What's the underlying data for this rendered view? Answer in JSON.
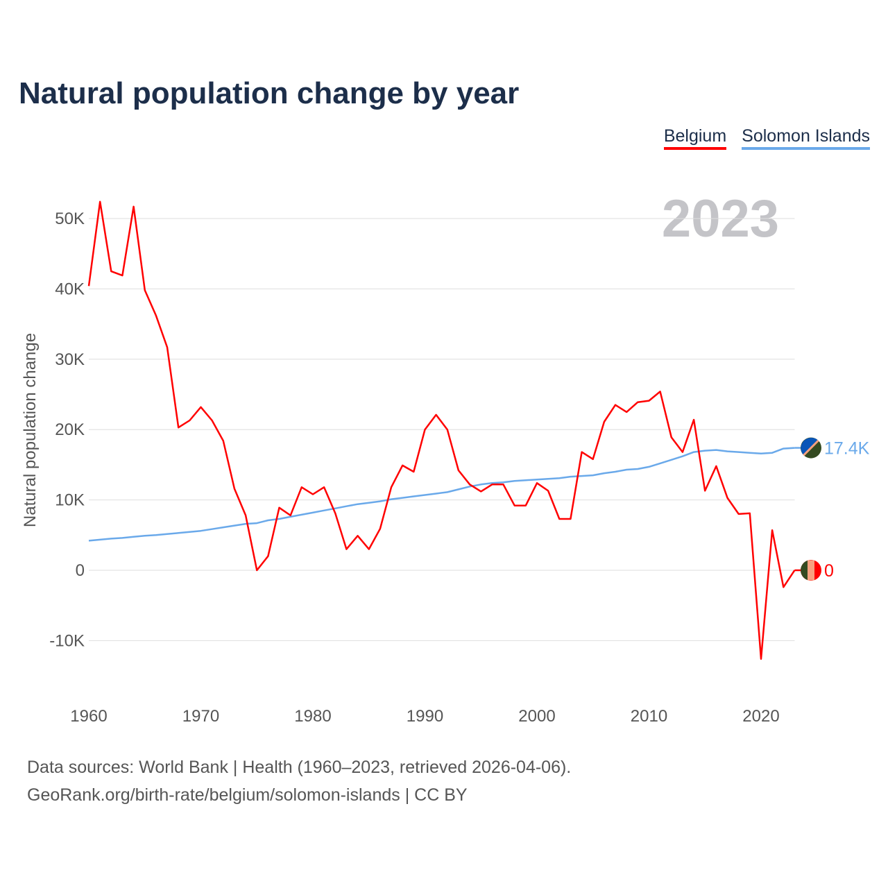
{
  "chart_data": {
    "type": "line",
    "title": "Natural population change by year",
    "xlabel": "",
    "ylabel": "Natural population change",
    "xlim": [
      1960,
      2023
    ],
    "ylim": [
      -15000,
      55000
    ],
    "grid": true,
    "legend_position": "top-right",
    "x_ticks": [
      1960,
      1970,
      1980,
      1990,
      2000,
      2010,
      2020
    ],
    "x_tick_labels": [
      "1960",
      "1970",
      "1980",
      "1990",
      "2000",
      "2010",
      "2020"
    ],
    "y_ticks": [
      -10000,
      0,
      10000,
      20000,
      30000,
      40000,
      50000
    ],
    "y_tick_labels": [
      "-10K",
      "0",
      "10K",
      "20K",
      "30K",
      "40K",
      "50K"
    ],
    "year_annotation": "2023",
    "x": [
      1960,
      1961,
      1962,
      1963,
      1964,
      1965,
      1966,
      1967,
      1968,
      1969,
      1970,
      1971,
      1972,
      1973,
      1974,
      1975,
      1976,
      1977,
      1978,
      1979,
      1980,
      1981,
      1982,
      1983,
      1984,
      1985,
      1986,
      1987,
      1988,
      1989,
      1990,
      1991,
      1992,
      1993,
      1994,
      1995,
      1996,
      1997,
      1998,
      1999,
      2000,
      2001,
      2002,
      2003,
      2004,
      2005,
      2006,
      2007,
      2008,
      2009,
      2010,
      2011,
      2012,
      2013,
      2014,
      2015,
      2016,
      2017,
      2018,
      2019,
      2020,
      2021,
      2022,
      2023
    ],
    "series": [
      {
        "name": "Belgium",
        "color": "#ff0000",
        "end_label": "0",
        "values": [
          40400,
          52400,
          42500,
          41900,
          51700,
          39800,
          36200,
          31700,
          20300,
          21300,
          23200,
          21300,
          18400,
          11600,
          7800,
          0,
          2000,
          8900,
          7800,
          11800,
          10800,
          11800,
          8100,
          3000,
          4900,
          3000,
          5900,
          11800,
          14900,
          14000,
          20000,
          22100,
          20000,
          14200,
          12200,
          11200,
          12200,
          12200,
          9200,
          9200,
          12400,
          11300,
          7300,
          7300,
          16800,
          15800,
          21100,
          23500,
          22500,
          23900,
          24100,
          25400,
          18900,
          16800,
          21400,
          11300,
          14800,
          10300,
          8000,
          8100,
          -12600,
          5700,
          -2400,
          0
        ]
      },
      {
        "name": "Solomon Islands",
        "color": "#6aa9ea",
        "end_label": "17.4K",
        "values": [
          4200,
          4350,
          4500,
          4600,
          4750,
          4900,
          5000,
          5150,
          5300,
          5450,
          5600,
          5850,
          6100,
          6350,
          6600,
          6700,
          7100,
          7300,
          7600,
          7900,
          8200,
          8500,
          8800,
          9100,
          9400,
          9600,
          9800,
          10100,
          10300,
          10500,
          10700,
          10900,
          11100,
          11500,
          11900,
          12200,
          12400,
          12500,
          12700,
          12800,
          12900,
          13000,
          13100,
          13300,
          13400,
          13500,
          13800,
          14000,
          14300,
          14400,
          14700,
          15200,
          15700,
          16200,
          16800,
          17000,
          17100,
          16900,
          16800,
          16700,
          16600,
          16700,
          17300,
          17400
        ]
      }
    ]
  },
  "footer": {
    "line1": "Data sources: World Bank | Health (1960–2023, retrieved 2026-04-06).",
    "line2": "GeoRank.org/birth-rate/belgium/solomon-islands | CC BY"
  }
}
